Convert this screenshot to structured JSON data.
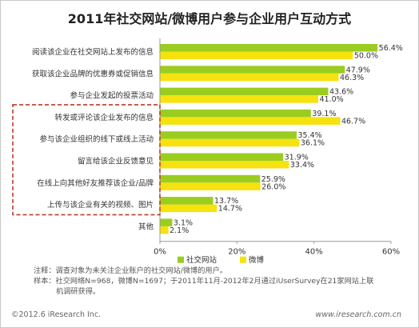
{
  "chart_data": {
    "type": "bar",
    "orientation": "horizontal",
    "title": "2011年社交网站/微博用户参与企业用户互动方式",
    "categories": [
      "阅读该企业在社交网站上发布的信息",
      "获取该企业品牌的优惠券或促销信息",
      "参与企业发起的投票活动",
      "转发或评论该企业发布的信息",
      "参与该企业组织的线下或线上活动",
      "留言给该企业反馈意见",
      "在线上向其他好友推荐该企业/品牌",
      "上传与该企业有关的视频、图片",
      "其他"
    ],
    "series": [
      {
        "name": "社交网站",
        "color": "#9acd1f",
        "values": [
          56.4,
          47.9,
          43.6,
          39.1,
          35.4,
          31.9,
          25.9,
          13.7,
          3.1
        ],
        "labels": [
          "56.4%",
          "47.9%",
          "43.6%",
          "39.1%",
          "35.4%",
          "31.9%",
          "25.9%",
          "13.7%",
          "3.1%"
        ]
      },
      {
        "name": "微博",
        "color": "#f5e20f",
        "values": [
          50.0,
          46.3,
          41.0,
          46.7,
          36.1,
          33.4,
          26.0,
          14.7,
          2.1
        ],
        "labels": [
          "50.0%",
          "46.3%",
          "41.0%",
          "46.7%",
          "36.1%",
          "33.4%",
          "26.0%",
          "14.7%",
          "2.1%"
        ]
      }
    ],
    "xlim": [
      0,
      60
    ],
    "xticks": [
      "0%",
      "20%",
      "40%",
      "60%"
    ],
    "highlighted_categories": [
      3,
      4,
      5,
      6,
      7
    ],
    "highlight_color": "#c0392b",
    "legend_position": "bottom"
  },
  "notes": {
    "line1": "注释：调查对象为未关注企业账户的社交网站/微博的用户。",
    "line2": "样本：社交网络N=968，微博N=1697；于2011年11月-2012年2月通过iUserSurvey在21家网站上联",
    "line3": "机调研获得。"
  },
  "footer": {
    "copyright": "©2012.6 iResearch Inc.",
    "website": "www.iresearch.com.cn"
  }
}
